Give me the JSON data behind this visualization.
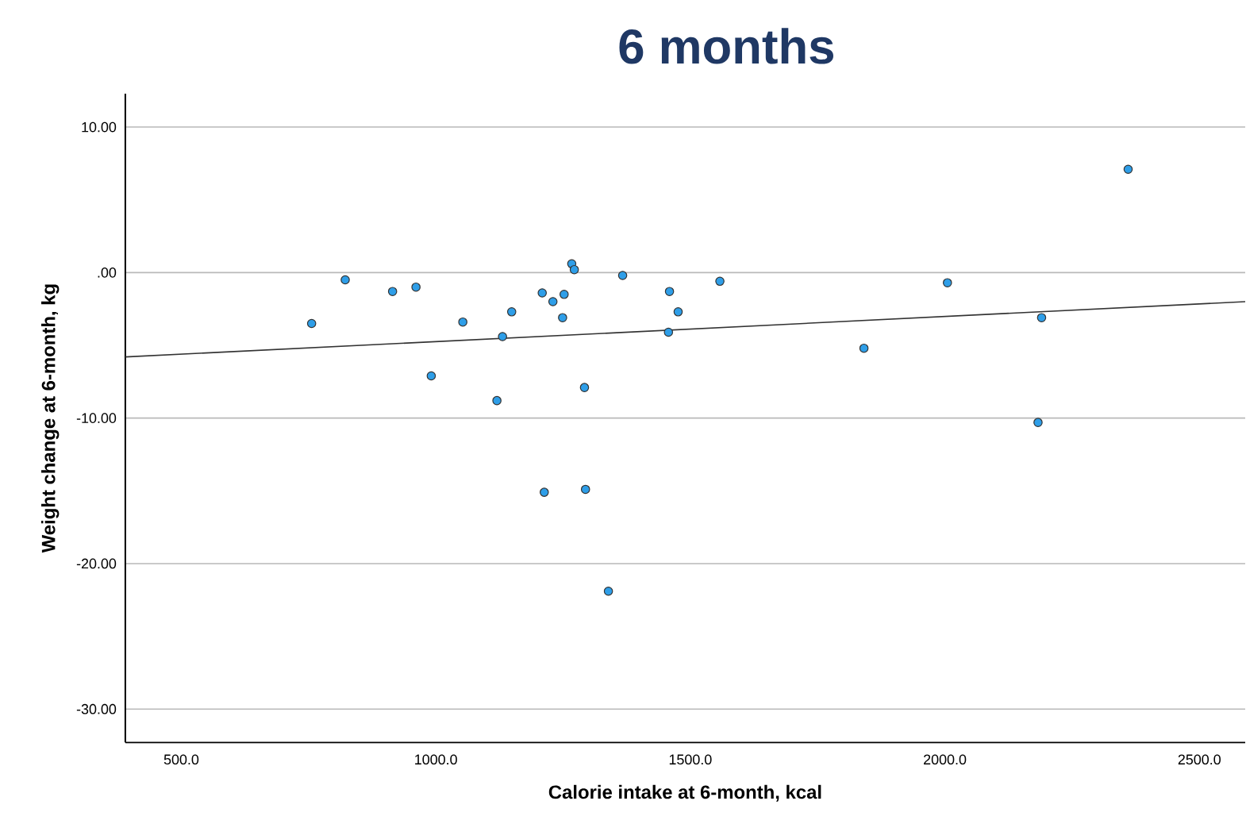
{
  "chart_data": {
    "type": "scatter",
    "title": "6 months",
    "xlabel": "Calorie intake at 6-month, kcal",
    "ylabel": "Weight change at 6-month, kg",
    "xlim": [
      390,
      2590
    ],
    "ylim": [
      -32.3,
      12.3
    ],
    "xticks": [
      {
        "value": 500,
        "label": "500.0"
      },
      {
        "value": 1000,
        "label": "1000.0"
      },
      {
        "value": 1500,
        "label": "1500.0"
      },
      {
        "value": 2000,
        "label": "2000.0"
      },
      {
        "value": 2500,
        "label": "2500.0"
      }
    ],
    "yticks": [
      {
        "value": -30,
        "label": "-30.00"
      },
      {
        "value": -20,
        "label": "-20.00"
      },
      {
        "value": -10,
        "label": "-10.00"
      },
      {
        "value": 0,
        "label": ".00"
      },
      {
        "value": 10,
        "label": "10.00"
      }
    ],
    "grid": "y",
    "series": [
      {
        "color": "#2e9ee8",
        "marker": "circle",
        "x": [
          756,
          822,
          915,
          961,
          1053,
          991,
          1149,
          1131,
          1120,
          1209,
          1230,
          1252,
          1249,
          1267,
          1272,
          1292,
          1367,
          1459,
          1476,
          1457,
          1558,
          1213,
          1294,
          1339,
          1841,
          2005,
          2190,
          2183,
          2360
        ],
        "values": [
          -3.5,
          -0.5,
          -1.3,
          -1.0,
          -3.4,
          -7.1,
          -2.7,
          -4.4,
          -8.8,
          -1.4,
          -2.0,
          -1.5,
          -3.1,
          0.6,
          0.2,
          -7.9,
          -0.2,
          -1.3,
          -2.7,
          -4.1,
          -0.6,
          -15.1,
          -14.9,
          -21.9,
          -5.2,
          -0.7,
          -3.1,
          -10.3,
          7.1
        ]
      },
      {
        "type": "line",
        "color": "#333333",
        "marker": "none",
        "x": [
          390,
          2590
        ],
        "values": [
          -5.8,
          -2.0
        ]
      }
    ]
  }
}
